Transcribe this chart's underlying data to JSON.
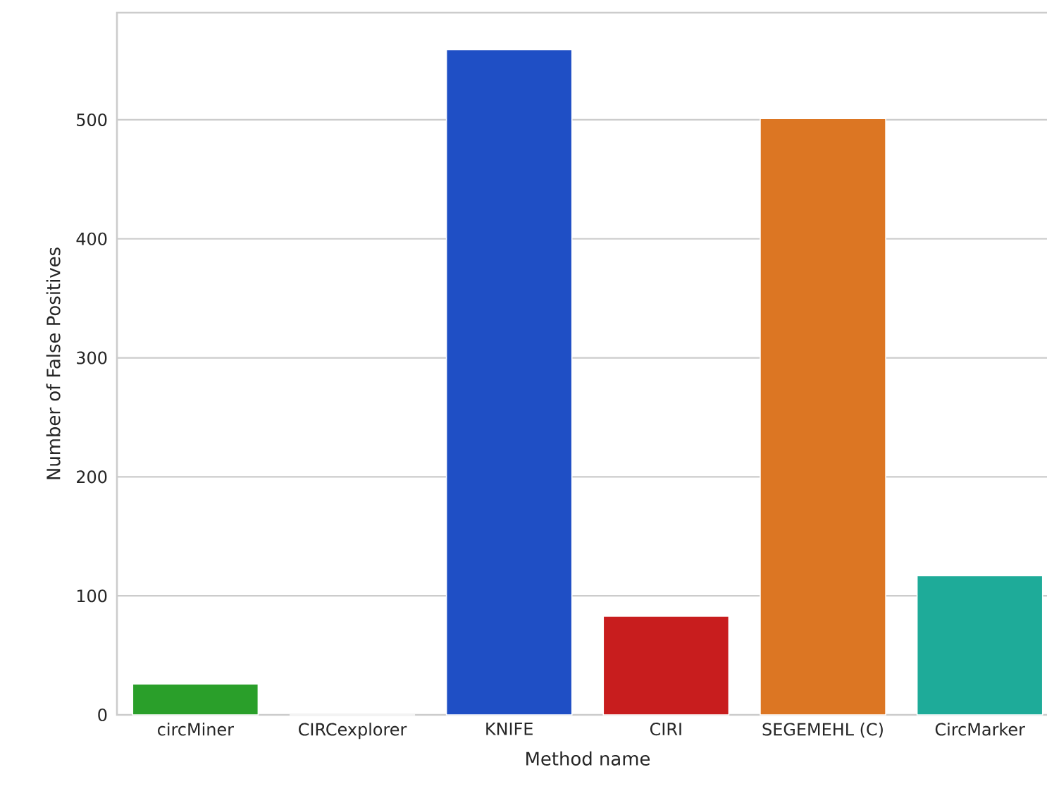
{
  "chart_data": {
    "type": "bar",
    "xlabel": "Method name",
    "ylabel": "Number of False Positives",
    "categories": [
      "circMiner",
      "CIRCexplorer",
      "KNIFE",
      "CIRI",
      "SEGEMEHL (C)",
      "CircMarker"
    ],
    "values": [
      26,
      0,
      559,
      83,
      501,
      117
    ],
    "colors": [
      "#2a9f2a",
      "#8c8c8c",
      "#1f4fc5",
      "#c81d1e",
      "#dc7623",
      "#1eab99"
    ],
    "ylim": [
      0,
      590
    ],
    "yticks": [
      0,
      100,
      200,
      300,
      400,
      500
    ],
    "grid": "y"
  }
}
